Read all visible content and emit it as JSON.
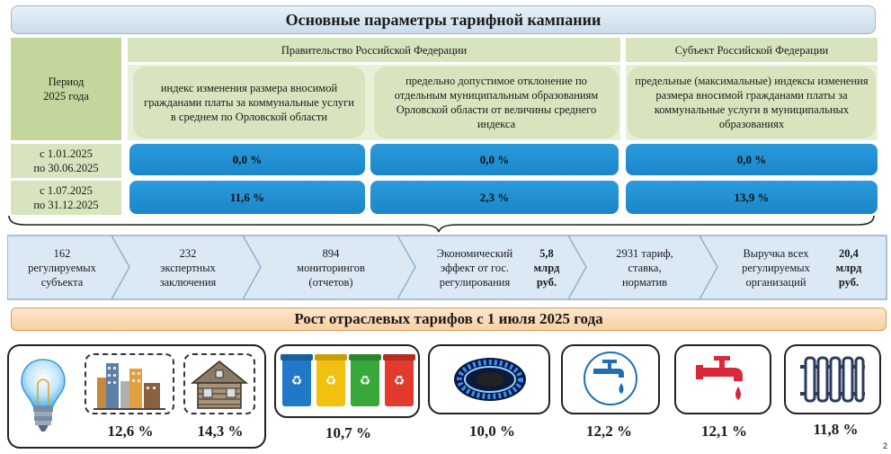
{
  "title": "Основные параметры тарифной кампании",
  "table": {
    "period_header": "Период\n2025 года",
    "gov_header": "Правительство Российской Федерации",
    "subject_header": "Субъект Российской Федерации",
    "col1_header": "индекс изменения размера вносимой гражданами платы за коммунальные услуги в среднем по Орловской области",
    "col2_header": "предельно допустимое отклонение по отдельным муниципальным образованиям Орловской области от величины среднего индекса",
    "col3_header": "предельные (максимальные) индексы изменения размера вносимой гражданами платы за коммунальные услуги в муниципальных образованиях",
    "rows": [
      {
        "period": "с 1.01.2025\nпо 30.06.2025",
        "v1": "0,0 %",
        "v2": "0,0 %",
        "v3": "0,0 %"
      },
      {
        "period": "с 1.07.2025\nпо 31.12.2025",
        "v1": "11,6 %",
        "v2": "2,3 %",
        "v3": "13,9 %"
      }
    ]
  },
  "steps": [
    {
      "text": "162\nрегулируемых\nсубъекта"
    },
    {
      "text": "232\nэкспертных\nзаключения"
    },
    {
      "text": "894\nмониторингов\n(отчетов)"
    },
    {
      "text": "Экономический\nэффект от гос.\nрегулирования",
      "value": "5,8\nмлрд\nруб."
    },
    {
      "text": "2931 тариф,\nставка,\nнорматив"
    },
    {
      "text": "Выручка всех\nрегулируемых\nорганизаций",
      "value": "20,4\nмлрд\nруб."
    }
  ],
  "growth_title": "Рост отраслевых тарифов с 1 июля 2025 года",
  "tariffs": {
    "electricity_city": "12,6 %",
    "electricity_rural": "14,3 %",
    "waste": "10,7 %",
    "gas": "10,0 %",
    "cold_water": "12,2 %",
    "hot_water": "12,1 %",
    "heating": "11,8 %"
  },
  "icons": [
    "light-bulb-icon",
    "city-buildings-icon",
    "wooden-house-icon",
    "waste-bins-icon",
    "gas-flame-icon",
    "cold-water-tap-icon",
    "hot-water-tap-icon",
    "radiator-icon"
  ],
  "colors": {
    "blue_cell": "#1a86c9",
    "green_cell": "#d7e4bd",
    "orange_bar": "#f9cfa0",
    "chevron": "#dbe9f5"
  },
  "page_number": "2"
}
